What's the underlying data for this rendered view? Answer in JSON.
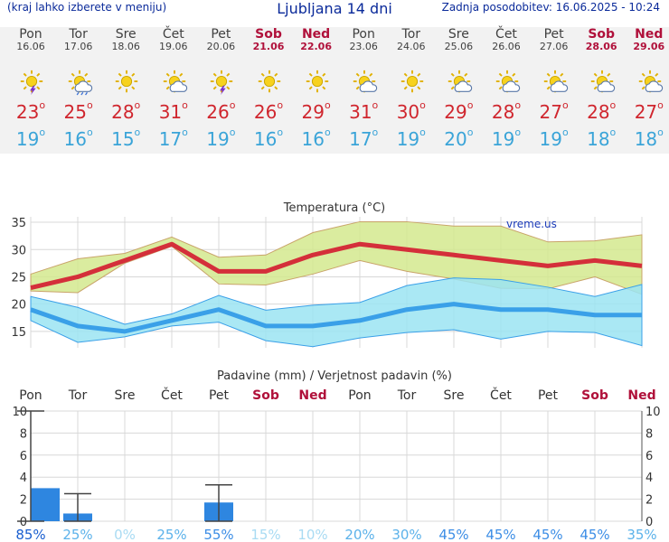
{
  "header": {
    "left_note": "(kraj lahko izberete v meniju)",
    "title": "Ljubljana 14 dni",
    "updated": "Zadnja posodobitev: 16.06.2025 - 10:24"
  },
  "days": [
    {
      "day": "Pon",
      "date": "16.06",
      "hi": "23",
      "lo": "19",
      "icon": "sun-storm-icon",
      "weekend": false
    },
    {
      "day": "Tor",
      "date": "17.06",
      "hi": "25",
      "lo": "16",
      "icon": "sun-rain-cloud-icon",
      "weekend": false
    },
    {
      "day": "Sre",
      "date": "18.06",
      "hi": "28",
      "lo": "15",
      "icon": "sun-icon",
      "weekend": false
    },
    {
      "day": "Čet",
      "date": "19.06",
      "hi": "31",
      "lo": "17",
      "icon": "sun-cloud-icon",
      "weekend": false
    },
    {
      "day": "Pet",
      "date": "20.06",
      "hi": "26",
      "lo": "19",
      "icon": "sun-storm-icon",
      "weekend": false
    },
    {
      "day": "Sob",
      "date": "21.06",
      "hi": "26",
      "lo": "16",
      "icon": "sun-icon",
      "weekend": true
    },
    {
      "day": "Ned",
      "date": "22.06",
      "hi": "29",
      "lo": "16",
      "icon": "sun-icon",
      "weekend": true
    },
    {
      "day": "Pon",
      "date": "23.06",
      "hi": "31",
      "lo": "17",
      "icon": "sun-cloud-icon",
      "weekend": false
    },
    {
      "day": "Tor",
      "date": "24.06",
      "hi": "30",
      "lo": "19",
      "icon": "sun-icon",
      "weekend": false
    },
    {
      "day": "Sre",
      "date": "25.06",
      "hi": "29",
      "lo": "20",
      "icon": "sun-cloud-icon",
      "weekend": false
    },
    {
      "day": "Čet",
      "date": "26.06",
      "hi": "28",
      "lo": "19",
      "icon": "sun-cloud-icon",
      "weekend": false
    },
    {
      "day": "Pet",
      "date": "27.06",
      "hi": "27",
      "lo": "19",
      "icon": "sun-cloud-icon",
      "weekend": false
    },
    {
      "day": "Sob",
      "date": "28.06",
      "hi": "28",
      "lo": "18",
      "icon": "sun-cloud-icon",
      "weekend": true
    },
    {
      "day": "Ned",
      "date": "29.06",
      "hi": "27",
      "lo": "18",
      "icon": "sun-cloud-icon",
      "weekend": true
    }
  ],
  "chart_data": [
    {
      "type": "line",
      "title": "Temperatura (°C)",
      "watermark": "vreme.us",
      "ylim": [
        12,
        36
      ],
      "yticks": [
        15,
        20,
        25,
        30,
        35
      ],
      "x": [
        0,
        1,
        2,
        3,
        4,
        5,
        6,
        7,
        8,
        9,
        10,
        11,
        12,
        13
      ],
      "series": [
        {
          "name": "max",
          "color": "#d42f3a",
          "values": [
            23,
            25,
            28,
            31,
            26,
            26,
            29,
            31,
            30,
            29,
            28,
            27,
            28,
            27
          ]
        },
        {
          "name": "min",
          "color": "#3aa0e8",
          "values": [
            19,
            16,
            15,
            17,
            19,
            16,
            16,
            17,
            19,
            20,
            19,
            19,
            18,
            18
          ]
        },
        {
          "name": "max_range_upper",
          "color": "#d4e98e",
          "values": [
            25.5,
            28.3,
            29.3,
            32.3,
            28.6,
            29,
            33.1,
            35.1,
            35.1,
            34.3,
            34.3,
            31.4,
            31.6,
            32.7
          ]
        },
        {
          "name": "max_range_lower",
          "color": "#d4e98e",
          "values": [
            22.4,
            22.1,
            27.5,
            30.6,
            23.7,
            23.5,
            25.5,
            28,
            26,
            24.6,
            22.9,
            22.8,
            25,
            21.8
          ]
        },
        {
          "name": "min_range_upper",
          "color": "#9be4f2",
          "values": [
            21.4,
            19.4,
            16.3,
            18.2,
            21.6,
            18.9,
            19.8,
            20.3,
            23.4,
            24.8,
            24.5,
            23.1,
            21.4,
            23.6
          ]
        },
        {
          "name": "min_range_lower",
          "color": "#9be4f2",
          "values": [
            17,
            13,
            14,
            16,
            16.7,
            13.3,
            12.2,
            13.8,
            14.8,
            15.3,
            13.6,
            15,
            14.8,
            12.4
          ]
        }
      ]
    },
    {
      "type": "bar",
      "title": "Padavine (mm) / Verjetnost padavin (%)",
      "categories": [
        "Pon",
        "Tor",
        "Sre",
        "Čet",
        "Pet",
        "Sob",
        "Ned",
        "Pon",
        "Tor",
        "Sre",
        "Čet",
        "Pet",
        "Sob",
        "Ned"
      ],
      "ylim": [
        0,
        10
      ],
      "yticks": [
        0,
        2,
        4,
        6,
        8,
        10
      ],
      "values": [
        3,
        0.7,
        0,
        0,
        1.7,
        0,
        0,
        0,
        0,
        0,
        0,
        0,
        0,
        0
      ],
      "error_high": [
        10,
        2.5,
        null,
        null,
        3.3,
        null,
        null,
        null,
        null,
        null,
        null,
        null,
        null,
        null
      ],
      "probability": [
        "85%",
        "25%",
        "0%",
        "25%",
        "55%",
        "15%",
        "10%",
        "20%",
        "30%",
        "45%",
        "45%",
        "45%",
        "45%",
        "35%"
      ]
    }
  ]
}
